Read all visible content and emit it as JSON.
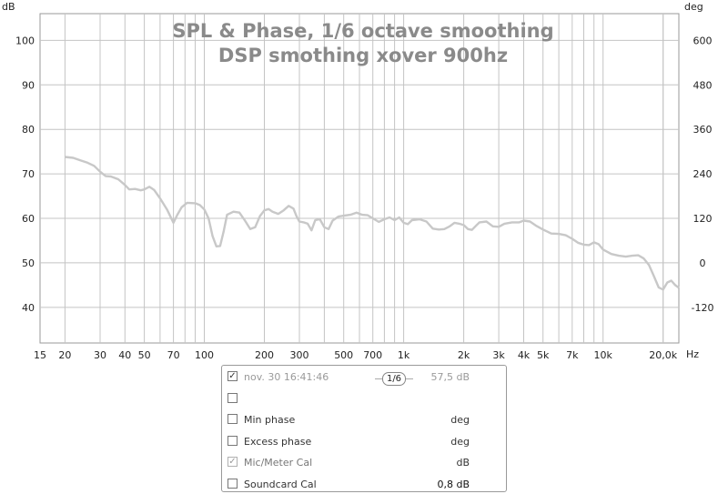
{
  "chart_data": {
    "type": "line",
    "title": [
      "SPL & Phase, 1/6 octave smoothing",
      "DSP smothing xover 900hz"
    ],
    "ylabel_left": "dB",
    "ylabel_right": "deg",
    "xlabel": "Hz",
    "x_scale": "log",
    "xlim": [
      15,
      24000
    ],
    "ylim": [
      32,
      106
    ],
    "y2lim": [
      -216,
      672
    ],
    "grid": true,
    "y_ticks": [
      "100",
      "90",
      "80",
      "70",
      "60",
      "50",
      "40"
    ],
    "y_tick_values": [
      100,
      90,
      80,
      70,
      60,
      50,
      40
    ],
    "y2_ticks": [
      "600",
      "480",
      "360",
      "240",
      "120",
      "0",
      "-120"
    ],
    "y2_tick_values": [
      600,
      480,
      360,
      240,
      120,
      0,
      -120
    ],
    "x_ticks": [
      {
        "v": 15,
        "label": "15"
      },
      {
        "v": 20,
        "label": "20"
      },
      {
        "v": 30,
        "label": "30"
      },
      {
        "v": 40,
        "label": "40"
      },
      {
        "v": 50,
        "label": "50"
      },
      {
        "v": 70,
        "label": "70"
      },
      {
        "v": 100,
        "label": "100"
      },
      {
        "v": 200,
        "label": "200"
      },
      {
        "v": 300,
        "label": "300"
      },
      {
        "v": 500,
        "label": "500"
      },
      {
        "v": 700,
        "label": "700"
      },
      {
        "v": 1000,
        "label": "1k"
      },
      {
        "v": 2000,
        "label": "2k"
      },
      {
        "v": 3000,
        "label": "3k"
      },
      {
        "v": 4000,
        "label": "4k"
      },
      {
        "v": 5000,
        "label": "5k"
      },
      {
        "v": 7000,
        "label": "7k"
      },
      {
        "v": 10000,
        "label": "10k"
      },
      {
        "v": 20000,
        "label": "20,0k"
      }
    ],
    "series": [
      {
        "color": "#c8c8c8",
        "points": [
          [
            20,
            73.8
          ],
          [
            22,
            73.6
          ],
          [
            24,
            73
          ],
          [
            26,
            72.5
          ],
          [
            28,
            71.8
          ],
          [
            30,
            70.5
          ],
          [
            32,
            69.5
          ],
          [
            34,
            69.4
          ],
          [
            37,
            68.8
          ],
          [
            40,
            67.5
          ],
          [
            42,
            66.5
          ],
          [
            45,
            66.6
          ],
          [
            48,
            66.3
          ],
          [
            50,
            66.5
          ],
          [
            53,
            67.1
          ],
          [
            56,
            66.4
          ],
          [
            60,
            64.5
          ],
          [
            65,
            62
          ],
          [
            70,
            59
          ],
          [
            73,
            60.7
          ],
          [
            77,
            62.5
          ],
          [
            82,
            63.5
          ],
          [
            90,
            63.4
          ],
          [
            95,
            63
          ],
          [
            100,
            62
          ],
          [
            105,
            60
          ],
          [
            110,
            56
          ],
          [
            115,
            53.7
          ],
          [
            120,
            53.8
          ],
          [
            125,
            57
          ],
          [
            130,
            60.8
          ],
          [
            140,
            61.5
          ],
          [
            150,
            61.3
          ],
          [
            160,
            59.5
          ],
          [
            170,
            57.6
          ],
          [
            180,
            58
          ],
          [
            190,
            60.5
          ],
          [
            200,
            61.8
          ],
          [
            210,
            62.1
          ],
          [
            220,
            61.5
          ],
          [
            235,
            61
          ],
          [
            250,
            61.8
          ],
          [
            265,
            62.8
          ],
          [
            280,
            62.2
          ],
          [
            290,
            60.5
          ],
          [
            300,
            59.3
          ],
          [
            315,
            59.1
          ],
          [
            330,
            58.8
          ],
          [
            345,
            57.3
          ],
          [
            360,
            59.6
          ],
          [
            380,
            59.8
          ],
          [
            400,
            58
          ],
          [
            420,
            57.6
          ],
          [
            440,
            59.5
          ],
          [
            470,
            60.4
          ],
          [
            500,
            60.6
          ],
          [
            540,
            60.8
          ],
          [
            580,
            61.3
          ],
          [
            620,
            60.8
          ],
          [
            660,
            60.7
          ],
          [
            700,
            60
          ],
          [
            750,
            59.2
          ],
          [
            800,
            59.8
          ],
          [
            850,
            60.2
          ],
          [
            900,
            59.6
          ],
          [
            950,
            60.2
          ],
          [
            1000,
            59
          ],
          [
            1050,
            58.7
          ],
          [
            1100,
            59.6
          ],
          [
            1200,
            59.8
          ],
          [
            1300,
            59.3
          ],
          [
            1400,
            57.7
          ],
          [
            1500,
            57.5
          ],
          [
            1600,
            57.6
          ],
          [
            1700,
            58.2
          ],
          [
            1800,
            59
          ],
          [
            1900,
            58.8
          ],
          [
            2000,
            58.5
          ],
          [
            2100,
            57.6
          ],
          [
            2200,
            57.4
          ],
          [
            2300,
            58.3
          ],
          [
            2400,
            59.1
          ],
          [
            2600,
            59.3
          ],
          [
            2800,
            58.2
          ],
          [
            3000,
            58.1
          ],
          [
            3200,
            58.8
          ],
          [
            3500,
            59.1
          ],
          [
            3800,
            59.1
          ],
          [
            4000,
            59.5
          ],
          [
            4300,
            59.3
          ],
          [
            4600,
            58.4
          ],
          [
            5000,
            57.5
          ],
          [
            5500,
            56.6
          ],
          [
            6000,
            56.5
          ],
          [
            6500,
            56.2
          ],
          [
            7000,
            55.4
          ],
          [
            7500,
            54.5
          ],
          [
            8000,
            54.1
          ],
          [
            8500,
            54
          ],
          [
            9000,
            54.6
          ],
          [
            9500,
            54.2
          ],
          [
            10000,
            53
          ],
          [
            11000,
            52
          ],
          [
            12000,
            51.6
          ],
          [
            13000,
            51.4
          ],
          [
            14000,
            51.6
          ],
          [
            15000,
            51.7
          ],
          [
            16000,
            51
          ],
          [
            17000,
            49.5
          ],
          [
            18000,
            47
          ],
          [
            19000,
            44.5
          ],
          [
            20000,
            44
          ],
          [
            21000,
            45.6
          ],
          [
            22000,
            46
          ],
          [
            23000,
            45
          ],
          [
            24000,
            44.4
          ]
        ]
      }
    ]
  },
  "legend": {
    "rows": [
      {
        "checked": true,
        "name": "nov. 30 16:41:46",
        "smoothing": "1/6",
        "value": "57,5 dB",
        "dim": true
      },
      {
        "checked": false,
        "name": "",
        "smoothing": "",
        "value": "",
        "dim": false
      },
      {
        "checked": false,
        "name": "Min phase",
        "smoothing": "",
        "value": "deg",
        "dim": false
      },
      {
        "checked": false,
        "name": "Excess phase",
        "smoothing": "",
        "value": "deg",
        "dim": false
      },
      {
        "checked": true,
        "name": "Mic/Meter Cal",
        "smoothing": "",
        "value": "dB",
        "dim": false,
        "grey": true
      },
      {
        "checked": false,
        "name": "Soundcard Cal",
        "smoothing": "",
        "value": "0,8 dB",
        "dim": false,
        "dark": true
      }
    ]
  }
}
